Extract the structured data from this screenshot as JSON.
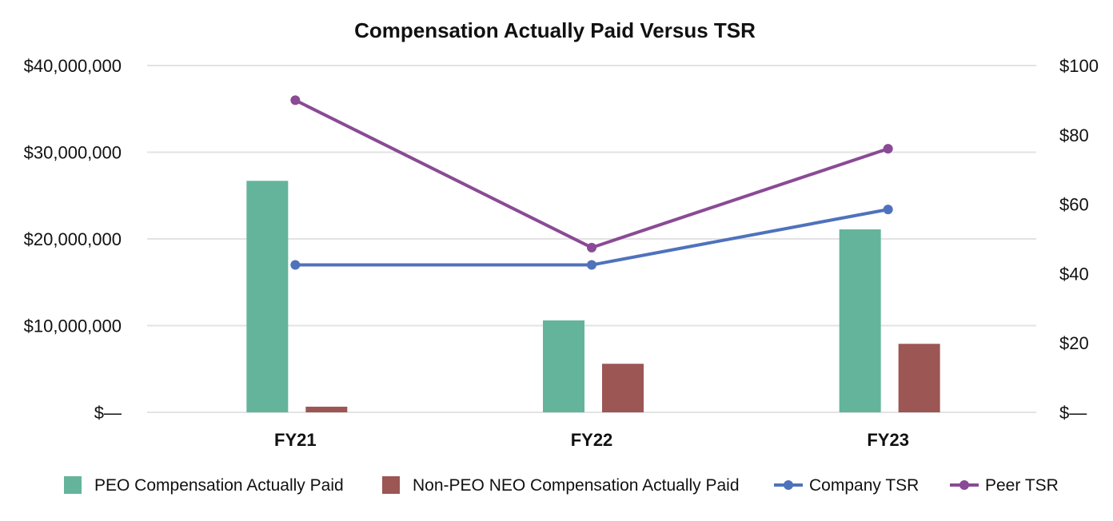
{
  "chart_data": {
    "type": "bar",
    "title": "Compensation Actually Paid Versus TSR",
    "categories": [
      "FY21",
      "FY22",
      "FY23"
    ],
    "left_axis": {
      "ylim": [
        0,
        40000000
      ],
      "ticks": [
        0,
        10000000,
        20000000,
        30000000,
        40000000
      ],
      "tick_labels": [
        "$—",
        "$10,000,000",
        "$20,000,000",
        "$30,000,000",
        "$40,000,000"
      ]
    },
    "right_axis": {
      "ylim": [
        0,
        100
      ],
      "ticks": [
        0,
        20,
        40,
        60,
        80,
        100
      ],
      "tick_labels": [
        "$—",
        "$20",
        "$40",
        "$60",
        "$80",
        "$100"
      ]
    },
    "grid": true,
    "legend_position": "bottom",
    "series": [
      {
        "name": "PEO Compensation Actually Paid",
        "kind": "bar",
        "axis": "left",
        "color": "#63b49a",
        "values": [
          26700000,
          10600000,
          21100000
        ]
      },
      {
        "name": "Non-PEO NEO Compensation Actually Paid",
        "kind": "bar",
        "axis": "left",
        "color": "#9c5654",
        "values": [
          650000,
          5600000,
          7900000
        ]
      },
      {
        "name": "Company TSR",
        "kind": "line",
        "axis": "right",
        "color": "#4f72bd",
        "values": [
          42.5,
          42.5,
          58.5
        ]
      },
      {
        "name": "Peer TSR",
        "kind": "line",
        "axis": "right",
        "color": "#8a4a95",
        "values": [
          90,
          47.5,
          76
        ]
      }
    ]
  }
}
